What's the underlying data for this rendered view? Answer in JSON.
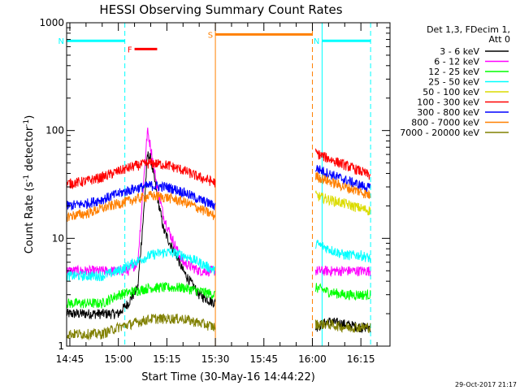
{
  "chart_data": {
    "type": "line",
    "title": "HESSI Observing Summary Count Rates",
    "xlabel": "Start Time (30-May-16 14:44:22)",
    "ylabel_main": "Count Rate (s",
    "ylabel_sup1": "-1",
    "ylabel_mid": " detector",
    "ylabel_sup2": "-1",
    "ylabel_end": ")",
    "yscale": "log",
    "xlim": [
      "14:44",
      "16:24"
    ],
    "ylim": [
      1,
      1000
    ],
    "xticks": [
      "14:45",
      "15:00",
      "15:15",
      "15:30",
      "15:45",
      "16:00",
      "16:15"
    ],
    "yticks": [
      {
        "value": 1,
        "label": "1"
      },
      {
        "value": 10,
        "label": "10"
      },
      {
        "value": 100,
        "label": "100"
      },
      {
        "value": 1000,
        "label": "1000"
      }
    ],
    "legend": {
      "placement": "right",
      "header_lines": [
        "Det 1,3, FDecim 1,",
        "Att 0"
      ],
      "entries": [
        {
          "label": "3 - 6 keV",
          "color": "#000000"
        },
        {
          "label": "6 - 12 keV",
          "color": "#ff00ff"
        },
        {
          "label": "12 - 25 keV",
          "color": "#00ff00"
        },
        {
          "label": "25 - 50 keV",
          "color": "#00ffff"
        },
        {
          "label": "50 - 100 keV",
          "color": "#dcdc00"
        },
        {
          "label": "100 - 300 keV",
          "color": "#ff0000"
        },
        {
          "label": "300 - 800 keV",
          "color": "#0000ff"
        },
        {
          "label": "800 - 7000 keV",
          "color": "#ff8000"
        },
        {
          "label": "7000 - 20000 keV",
          "color": "#808000"
        }
      ]
    },
    "series": [
      {
        "name": "3 - 6 keV",
        "color": "#000000",
        "segments": [
          {
            "x": [
              "14:44",
              "14:50",
              "14:55",
              "15:00",
              "15:03",
              "15:06",
              "15:08",
              "15:09",
              "15:10",
              "15:12",
              "15:14",
              "15:16",
              "15:18",
              "15:20",
              "15:25",
              "15:30"
            ],
            "y": [
              2,
              2,
              2,
              2,
              2.5,
              3.5,
              20,
              60,
              55,
              25,
              12,
              9,
              7,
              5,
              3,
              2.5
            ]
          },
          {
            "x": [
              "16:01",
              "16:05",
              "16:10",
              "16:15",
              "16:18"
            ],
            "y": [
              1.5,
              1.7,
              1.6,
              1.5,
              1.5
            ]
          }
        ]
      },
      {
        "name": "6 - 12 keV",
        "color": "#ff00ff",
        "segments": [
          {
            "x": [
              "14:44",
              "14:55",
              "15:03",
              "15:06",
              "15:08",
              "15:09",
              "15:10",
              "15:12",
              "15:14",
              "15:16",
              "15:18",
              "15:20",
              "15:25",
              "15:30"
            ],
            "y": [
              5,
              5,
              5,
              6,
              40,
              100,
              70,
              30,
              16,
              11,
              8,
              6,
              5,
              5
            ]
          },
          {
            "x": [
              "16:01",
              "16:05",
              "16:10",
              "16:15",
              "16:18"
            ],
            "y": [
              5,
              5,
              5,
              5,
              5
            ]
          }
        ]
      },
      {
        "name": "12 - 25 keV",
        "color": "#00ff00",
        "segments": [
          {
            "x": [
              "14:44",
              "14:55",
              "15:00",
              "15:10",
              "15:20",
              "15:30"
            ],
            "y": [
              2.5,
              2.5,
              3,
              3.5,
              3.5,
              3
            ]
          },
          {
            "x": [
              "16:01",
              "16:05",
              "16:10",
              "16:15",
              "16:18"
            ],
            "y": [
              3.5,
              3.2,
              3,
              3,
              3
            ]
          }
        ]
      },
      {
        "name": "25 - 50 keV",
        "color": "#00ffff",
        "segments": [
          {
            "x": [
              "14:44",
              "14:55",
              "15:00",
              "15:05",
              "15:10",
              "15:15",
              "15:20",
              "15:25",
              "15:30"
            ],
            "y": [
              4.5,
              4.5,
              5,
              6,
              7,
              7.5,
              7,
              6,
              5
            ]
          },
          {
            "x": [
              "16:01",
              "16:05",
              "16:10",
              "16:15",
              "16:18"
            ],
            "y": [
              9,
              8,
              7,
              7,
              6.5
            ]
          }
        ]
      },
      {
        "name": "50 - 100 keV",
        "color": "#dcdc00",
        "segments": [
          {
            "x": [
              "16:01",
              "16:05",
              "16:10",
              "16:15",
              "16:18"
            ],
            "y": [
              25,
              23,
              21,
              19,
              18
            ]
          }
        ]
      },
      {
        "name": "100 - 300 keV",
        "color": "#ff0000",
        "segments": [
          {
            "x": [
              "14:44",
              "14:50",
              "14:55",
              "15:00",
              "15:05",
              "15:10",
              "15:15",
              "15:20",
              "15:25",
              "15:30"
            ],
            "y": [
              32,
              34,
              37,
              42,
              47,
              50,
              48,
              43,
              37,
              33
            ]
          },
          {
            "x": [
              "16:01",
              "16:05",
              "16:10",
              "16:15",
              "16:18"
            ],
            "y": [
              62,
              55,
              48,
              42,
              38
            ]
          }
        ]
      },
      {
        "name": "300 - 800 keV",
        "color": "#0000ff",
        "segments": [
          {
            "x": [
              "14:44",
              "14:50",
              "14:55",
              "15:00",
              "15:05",
              "15:10",
              "15:15",
              "15:20",
              "15:25",
              "15:30"
            ],
            "y": [
              20,
              21,
              23,
              26,
              29,
              31,
              30,
              27,
              23,
              20
            ]
          },
          {
            "x": [
              "16:01",
              "16:05",
              "16:10",
              "16:15",
              "16:18"
            ],
            "y": [
              45,
              40,
              35,
              31,
              29
            ]
          }
        ]
      },
      {
        "name": "800 - 7000 keV",
        "color": "#ff8000",
        "segments": [
          {
            "x": [
              "14:44",
              "14:50",
              "14:55",
              "15:00",
              "15:05",
              "15:10",
              "15:15",
              "15:20",
              "15:25",
              "15:30"
            ],
            "y": [
              16,
              17,
              19,
              21,
              23,
              25,
              24,
              22,
              19,
              16
            ]
          },
          {
            "x": [
              "16:01",
              "16:05",
              "16:10",
              "16:15",
              "16:18"
            ],
            "y": [
              38,
              34,
              30,
              27,
              25
            ]
          }
        ]
      },
      {
        "name": "7000 - 20000 keV",
        "color": "#808000",
        "segments": [
          {
            "x": [
              "14:44",
              "14:55",
              "15:00",
              "15:10",
              "15:20",
              "15:30"
            ],
            "y": [
              1.3,
              1.3,
              1.5,
              1.8,
              1.8,
              1.5
            ]
          },
          {
            "x": [
              "16:01",
              "16:05",
              "16:10",
              "16:15",
              "16:18"
            ],
            "y": [
              1.6,
              1.6,
              1.5,
              1.5,
              1.5
            ]
          }
        ]
      }
    ],
    "flags": [
      {
        "label": "N",
        "color": "#00ffff",
        "start": "14:44",
        "end": "15:02",
        "y": 680
      },
      {
        "label": "N",
        "color": "#00ffff",
        "start": "16:03",
        "end": "16:18",
        "y": 680
      },
      {
        "label": "F",
        "color": "#ff0000",
        "start": "15:05",
        "end": "15:12",
        "y": 570
      },
      {
        "label": "S",
        "color": "#ff8000",
        "start": "15:30",
        "end": "16:00",
        "y": 780
      }
    ],
    "flag_labels": {
      "N": "N",
      "F": "F",
      "S": "S"
    },
    "vertical_lines": [
      {
        "x": "14:44",
        "color": "#00ffff",
        "dashed": false
      },
      {
        "x": "15:02",
        "color": "#00ffff",
        "dashed": true
      },
      {
        "x": "15:30",
        "color": "#ff8000",
        "dashed": false
      },
      {
        "x": "16:00",
        "color": "#ff8000",
        "dashed": true
      },
      {
        "x": "16:03",
        "color": "#00ffff",
        "dashed": false
      },
      {
        "x": "16:18",
        "color": "#00ffff",
        "dashed": true
      }
    ],
    "timestamp": "29-Oct-2017 21:17"
  }
}
